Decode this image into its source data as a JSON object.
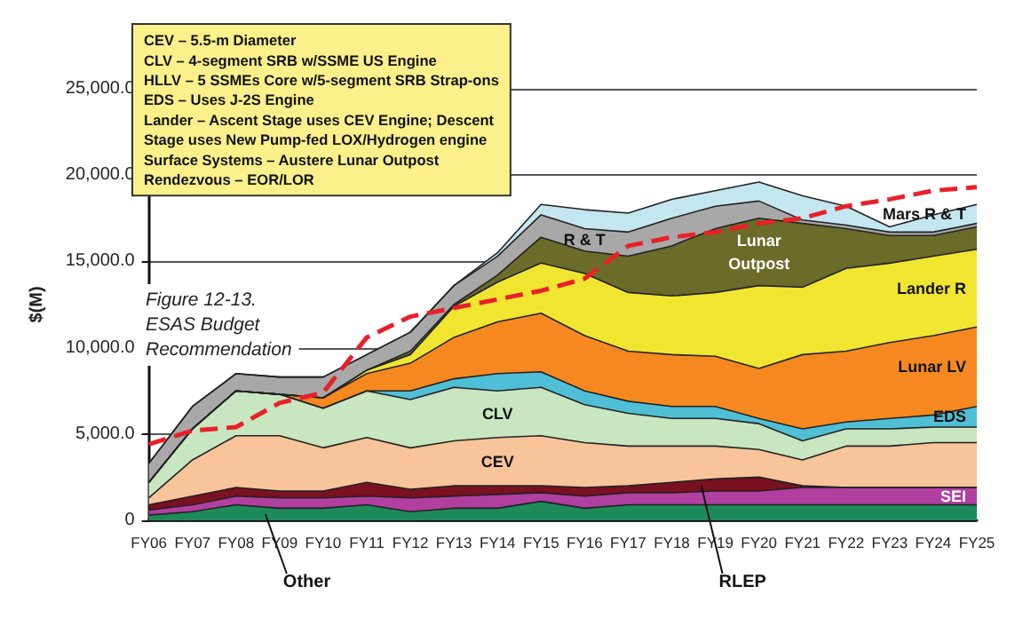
{
  "chart_data": {
    "type": "area",
    "stacked": true,
    "ylabel": "$(M)",
    "annotations": [
      "CEV – 5.5-m Diameter\nCLV – 4-segment SRB w/SSME US Engine\nHLLV – 5 SSMEs Core w/5-segment SRB Strap-ons\nEDS – Uses J-2S Engine\nLander – Ascent Stage uses CEV Engine; Descent\nStage uses New Pump-fed LOX/Hydrogen engine\nSurface Systems – Austere Lunar Outpost\nRendezvous – EOR/LOR",
      "Figure 12-13.\nESAS Budget\nRecommendation"
    ],
    "categories": [
      "FY06",
      "FY07",
      "FY08",
      "FY09",
      "FY10",
      "FY11",
      "FY12",
      "FY13",
      "FY14",
      "FY15",
      "FY16",
      "FY17",
      "FY18",
      "FY19",
      "FY20",
      "FY21",
      "FY22",
      "FY23",
      "FY24",
      "FY25"
    ],
    "ylim": [
      0,
      25000
    ],
    "yticks": [
      0,
      {
        "value": 5000,
        "label": "5,000.0"
      },
      {
        "value": 10000,
        "label": "10,000.0"
      },
      {
        "value": 15000,
        "label": "15,000.0"
      },
      {
        "value": 20000,
        "label": "20,000.0"
      },
      {
        "value": 25000,
        "label": "25,000.0"
      }
    ],
    "grid": "y",
    "legend": false,
    "series": [
      {
        "name": "Other",
        "color": "#1e8a5a",
        "values": [
          300,
          500,
          900,
          700,
          700,
          900,
          500,
          700,
          700,
          1100,
          700,
          900,
          900,
          900,
          900,
          900,
          900,
          900,
          900,
          900
        ]
      },
      {
        "name": "SEI",
        "color": "#b03fa0",
        "values": [
          300,
          400,
          500,
          600,
          600,
          500,
          800,
          700,
          800,
          500,
          700,
          700,
          700,
          800,
          800,
          1000,
          1000,
          1000,
          1000,
          1000
        ]
      },
      {
        "name": "RLEP",
        "color": "#7a1020",
        "values": [
          300,
          500,
          500,
          400,
          400,
          800,
          500,
          600,
          500,
          400,
          500,
          400,
          600,
          700,
          800,
          100,
          0,
          0,
          0,
          0
        ]
      },
      {
        "name": "CEV",
        "color": "#f9c49a",
        "values": [
          400,
          2100,
          3000,
          3200,
          2500,
          2600,
          2400,
          2600,
          2800,
          2900,
          2600,
          2300,
          2100,
          1900,
          1600,
          1500,
          2400,
          2400,
          2600,
          2600
        ]
      },
      {
        "name": "CLV",
        "color": "#c8e6c0",
        "values": [
          900,
          1800,
          2600,
          2400,
          2300,
          2700,
          2800,
          3100,
          2700,
          2800,
          2200,
          1900,
          1600,
          1600,
          1500,
          1100,
          1000,
          1000,
          900,
          900
        ]
      },
      {
        "name": "EDS",
        "color": "#4fbfd6",
        "values": [
          0,
          0,
          0,
          0,
          0,
          0,
          500,
          500,
          1000,
          900,
          800,
          700,
          700,
          700,
          300,
          700,
          400,
          600,
          700,
          1200
        ]
      },
      {
        "name": "Lunar LV",
        "color": "#f5891f",
        "values": [
          0,
          0,
          0,
          0,
          600,
          1000,
          1600,
          2400,
          3000,
          3400,
          3200,
          2900,
          3000,
          2900,
          2900,
          4300,
          4100,
          4400,
          4600,
          4600
        ]
      },
      {
        "name": "Lander R",
        "color": "#f0e630",
        "values": [
          0,
          0,
          0,
          0,
          0,
          200,
          500,
          1800,
          2300,
          2900,
          3600,
          3400,
          3400,
          3700,
          4800,
          3900,
          4800,
          4600,
          4600,
          4500
        ]
      },
      {
        "name": "Lunar\nOutpost",
        "color": "#6b6b2a",
        "values": [
          0,
          0,
          0,
          0,
          0,
          0,
          200,
          100,
          400,
          1500,
          1300,
          2100,
          2900,
          3700,
          3900,
          3700,
          2300,
          1600,
          1200,
          1300
        ]
      },
      {
        "name": "R & T",
        "color": "#a8a8a8",
        "values": [
          1100,
          1300,
          1000,
          1000,
          1200,
          900,
          1100,
          1100,
          1100,
          1300,
          1300,
          1400,
          1600,
          1300,
          1000,
          200,
          200,
          200,
          200,
          200
        ]
      },
      {
        "name": "Mars R & T",
        "color": "#c4e6f0",
        "values": [
          0,
          0,
          0,
          0,
          0,
          0,
          0,
          0,
          200,
          600,
          1100,
          1100,
          1100,
          900,
          1100,
          1400,
          1100,
          300,
          1000,
          1100
        ]
      },
      {
        "type": "line",
        "line_style": "dashed",
        "color": "#e8202a",
        "values": [
          4400,
          5200,
          5400,
          6800,
          7400,
          10600,
          11800,
          12300,
          12800,
          13300,
          14000,
          15900,
          16400,
          16700,
          17200,
          17500,
          18200,
          18600,
          19100,
          19300
        ]
      }
    ]
  }
}
